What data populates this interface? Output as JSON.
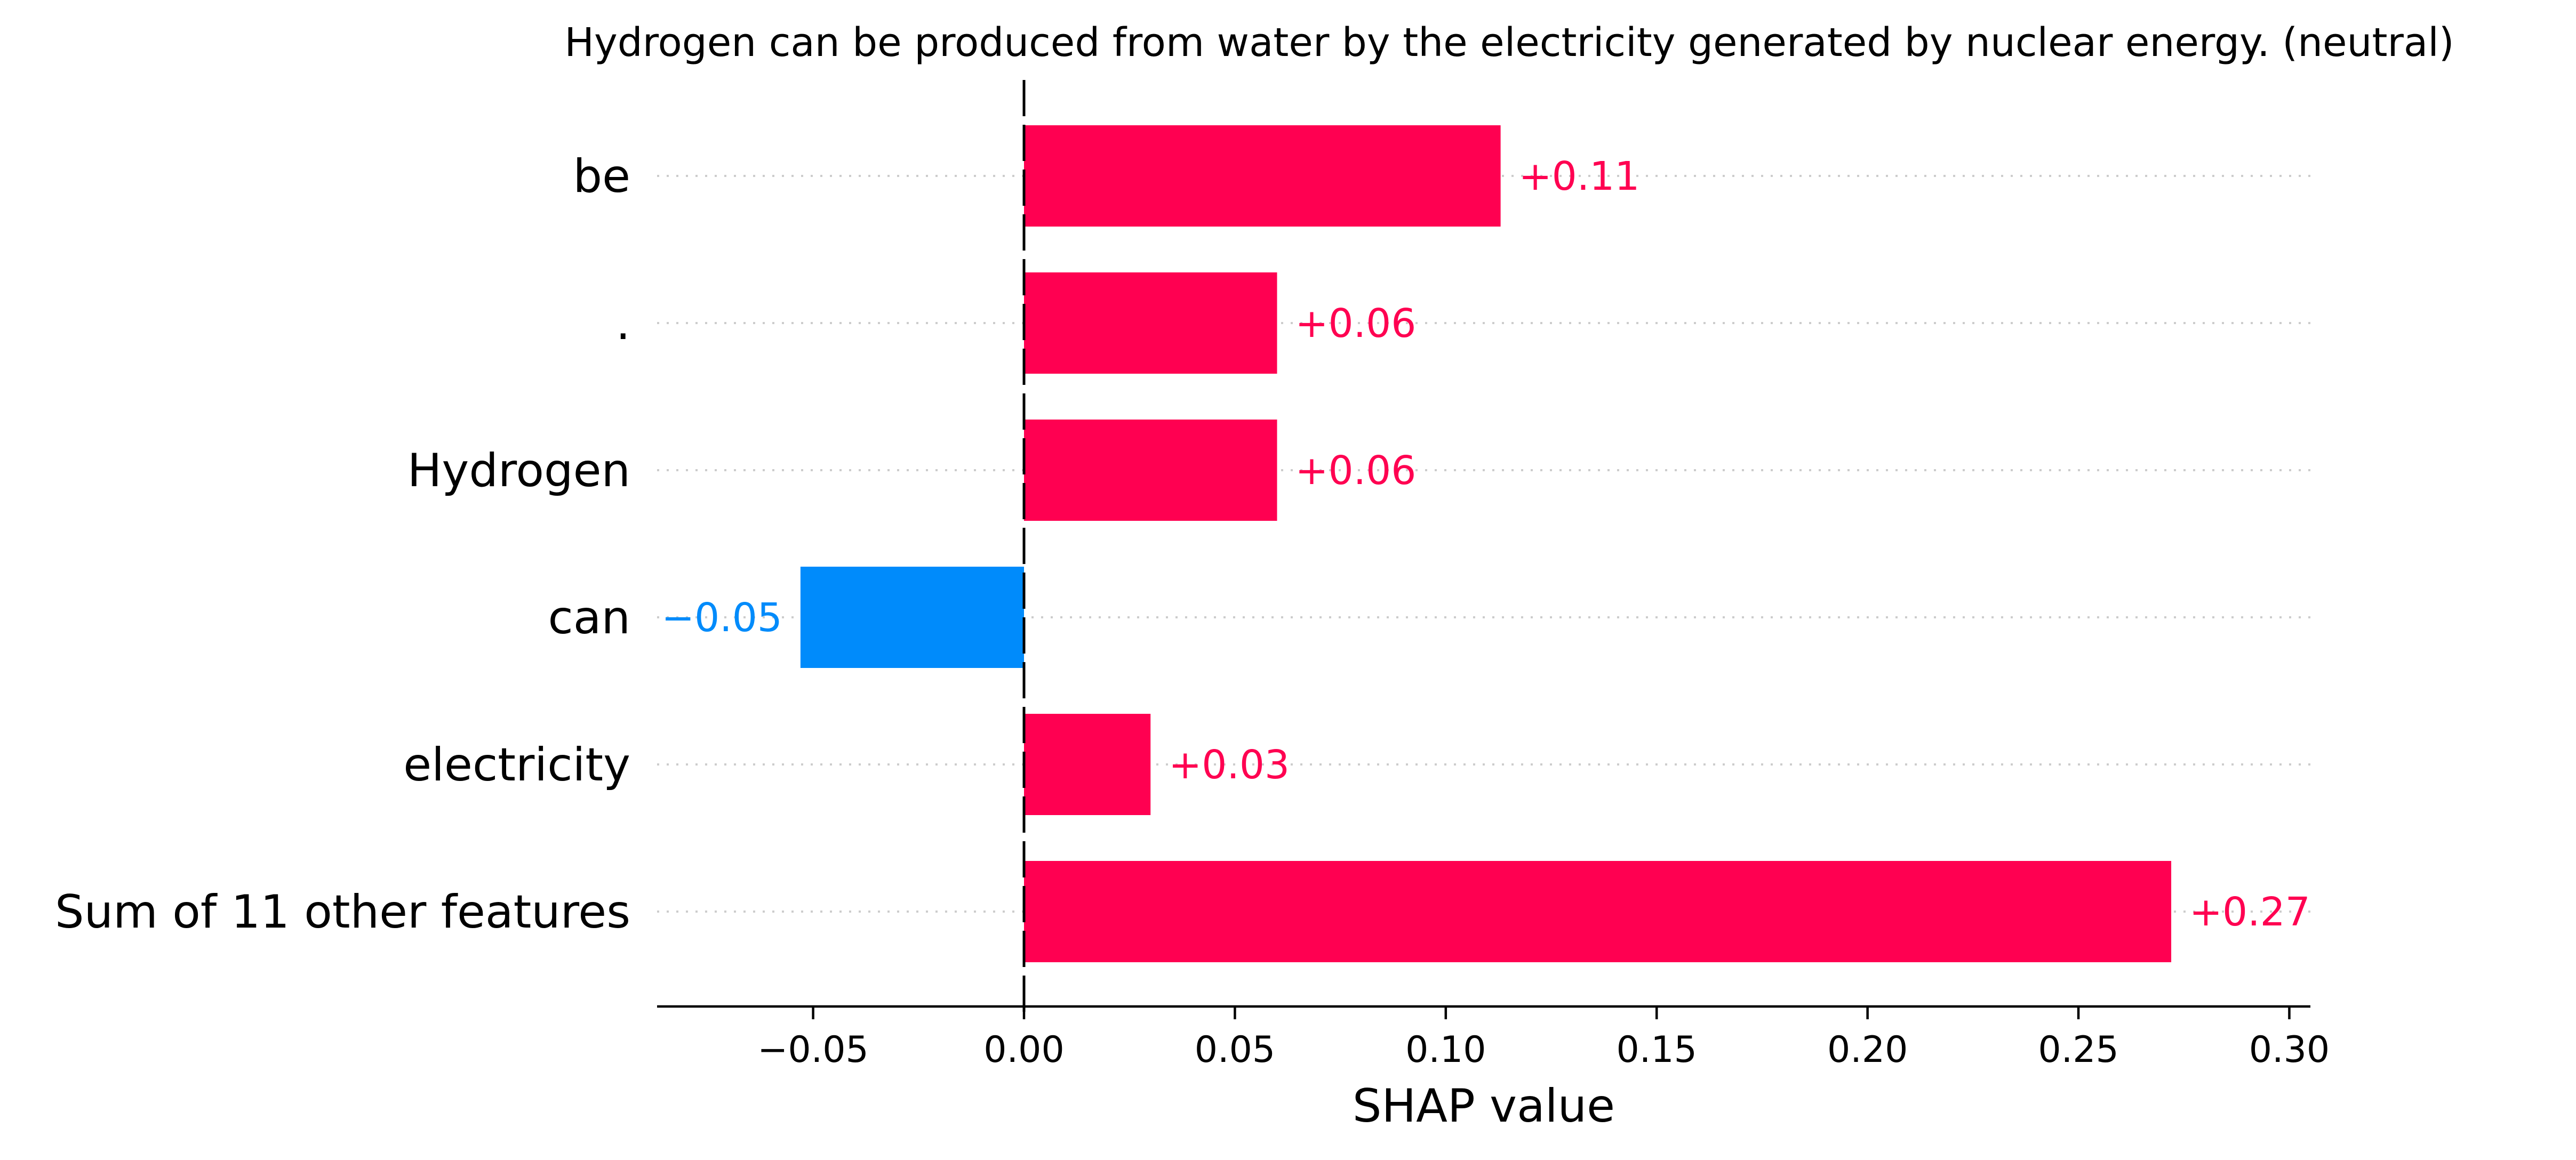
{
  "chart_data": {
    "type": "bar",
    "orientation": "horizontal",
    "title": "Hydrogen can be produced from water by the electricity generated by nuclear energy. (neutral)",
    "xlabel": "SHAP value",
    "ylabel": "",
    "categories": [
      "be",
      ".",
      "Hydrogen",
      "can",
      "electricity",
      "Sum of 11 other features"
    ],
    "values": [
      0.113,
      0.06,
      0.06,
      -0.053,
      0.03,
      0.272
    ],
    "value_labels": [
      "+0.11",
      "+0.06",
      "+0.06",
      "−0.05",
      "+0.03",
      "+0.27"
    ],
    "xlim": [
      -0.087,
      0.305
    ],
    "xticks": [
      -0.05,
      0.0,
      0.05,
      0.1,
      0.15,
      0.2,
      0.25,
      0.3
    ],
    "xtick_labels": [
      "−0.05",
      "0.00",
      "0.05",
      "0.10",
      "0.15",
      "0.20",
      "0.25",
      "0.30"
    ],
    "grid": "dotted horizontal row guides",
    "legend": "none",
    "colors": {
      "positive": "#ff0051",
      "negative": "#008bfb",
      "axis": "#000000",
      "grid": "#cccccc"
    }
  }
}
